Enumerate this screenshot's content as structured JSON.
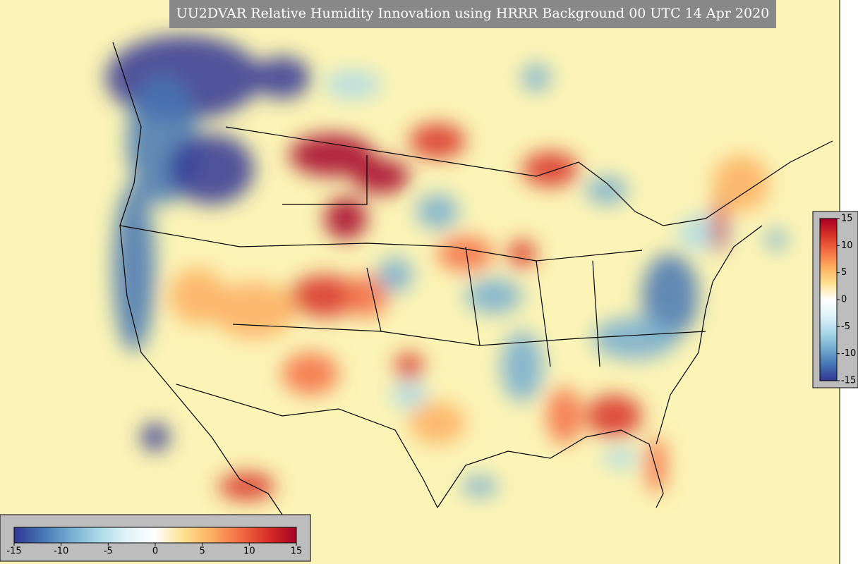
{
  "title": "UU2DVAR Relative Humidity Innovation using HRRR Background 00 UTC 14 Apr 2020",
  "colormap": [
    "#313695",
    "#4575b4",
    "#74add1",
    "#abd9e9",
    "#e0f3f8",
    "#ffffff",
    "#fee090",
    "#fdae61",
    "#f46d43",
    "#d73027",
    "#a50026"
  ],
  "colorbar_horizontal": {
    "range": [
      -15,
      15
    ],
    "ticks": [
      -15,
      -10,
      -5,
      0,
      5,
      10,
      15
    ]
  },
  "colorbar_vertical": {
    "range": [
      -15,
      15
    ],
    "ticks": [
      -15,
      -10,
      -5,
      0,
      5,
      10,
      15
    ]
  }
}
